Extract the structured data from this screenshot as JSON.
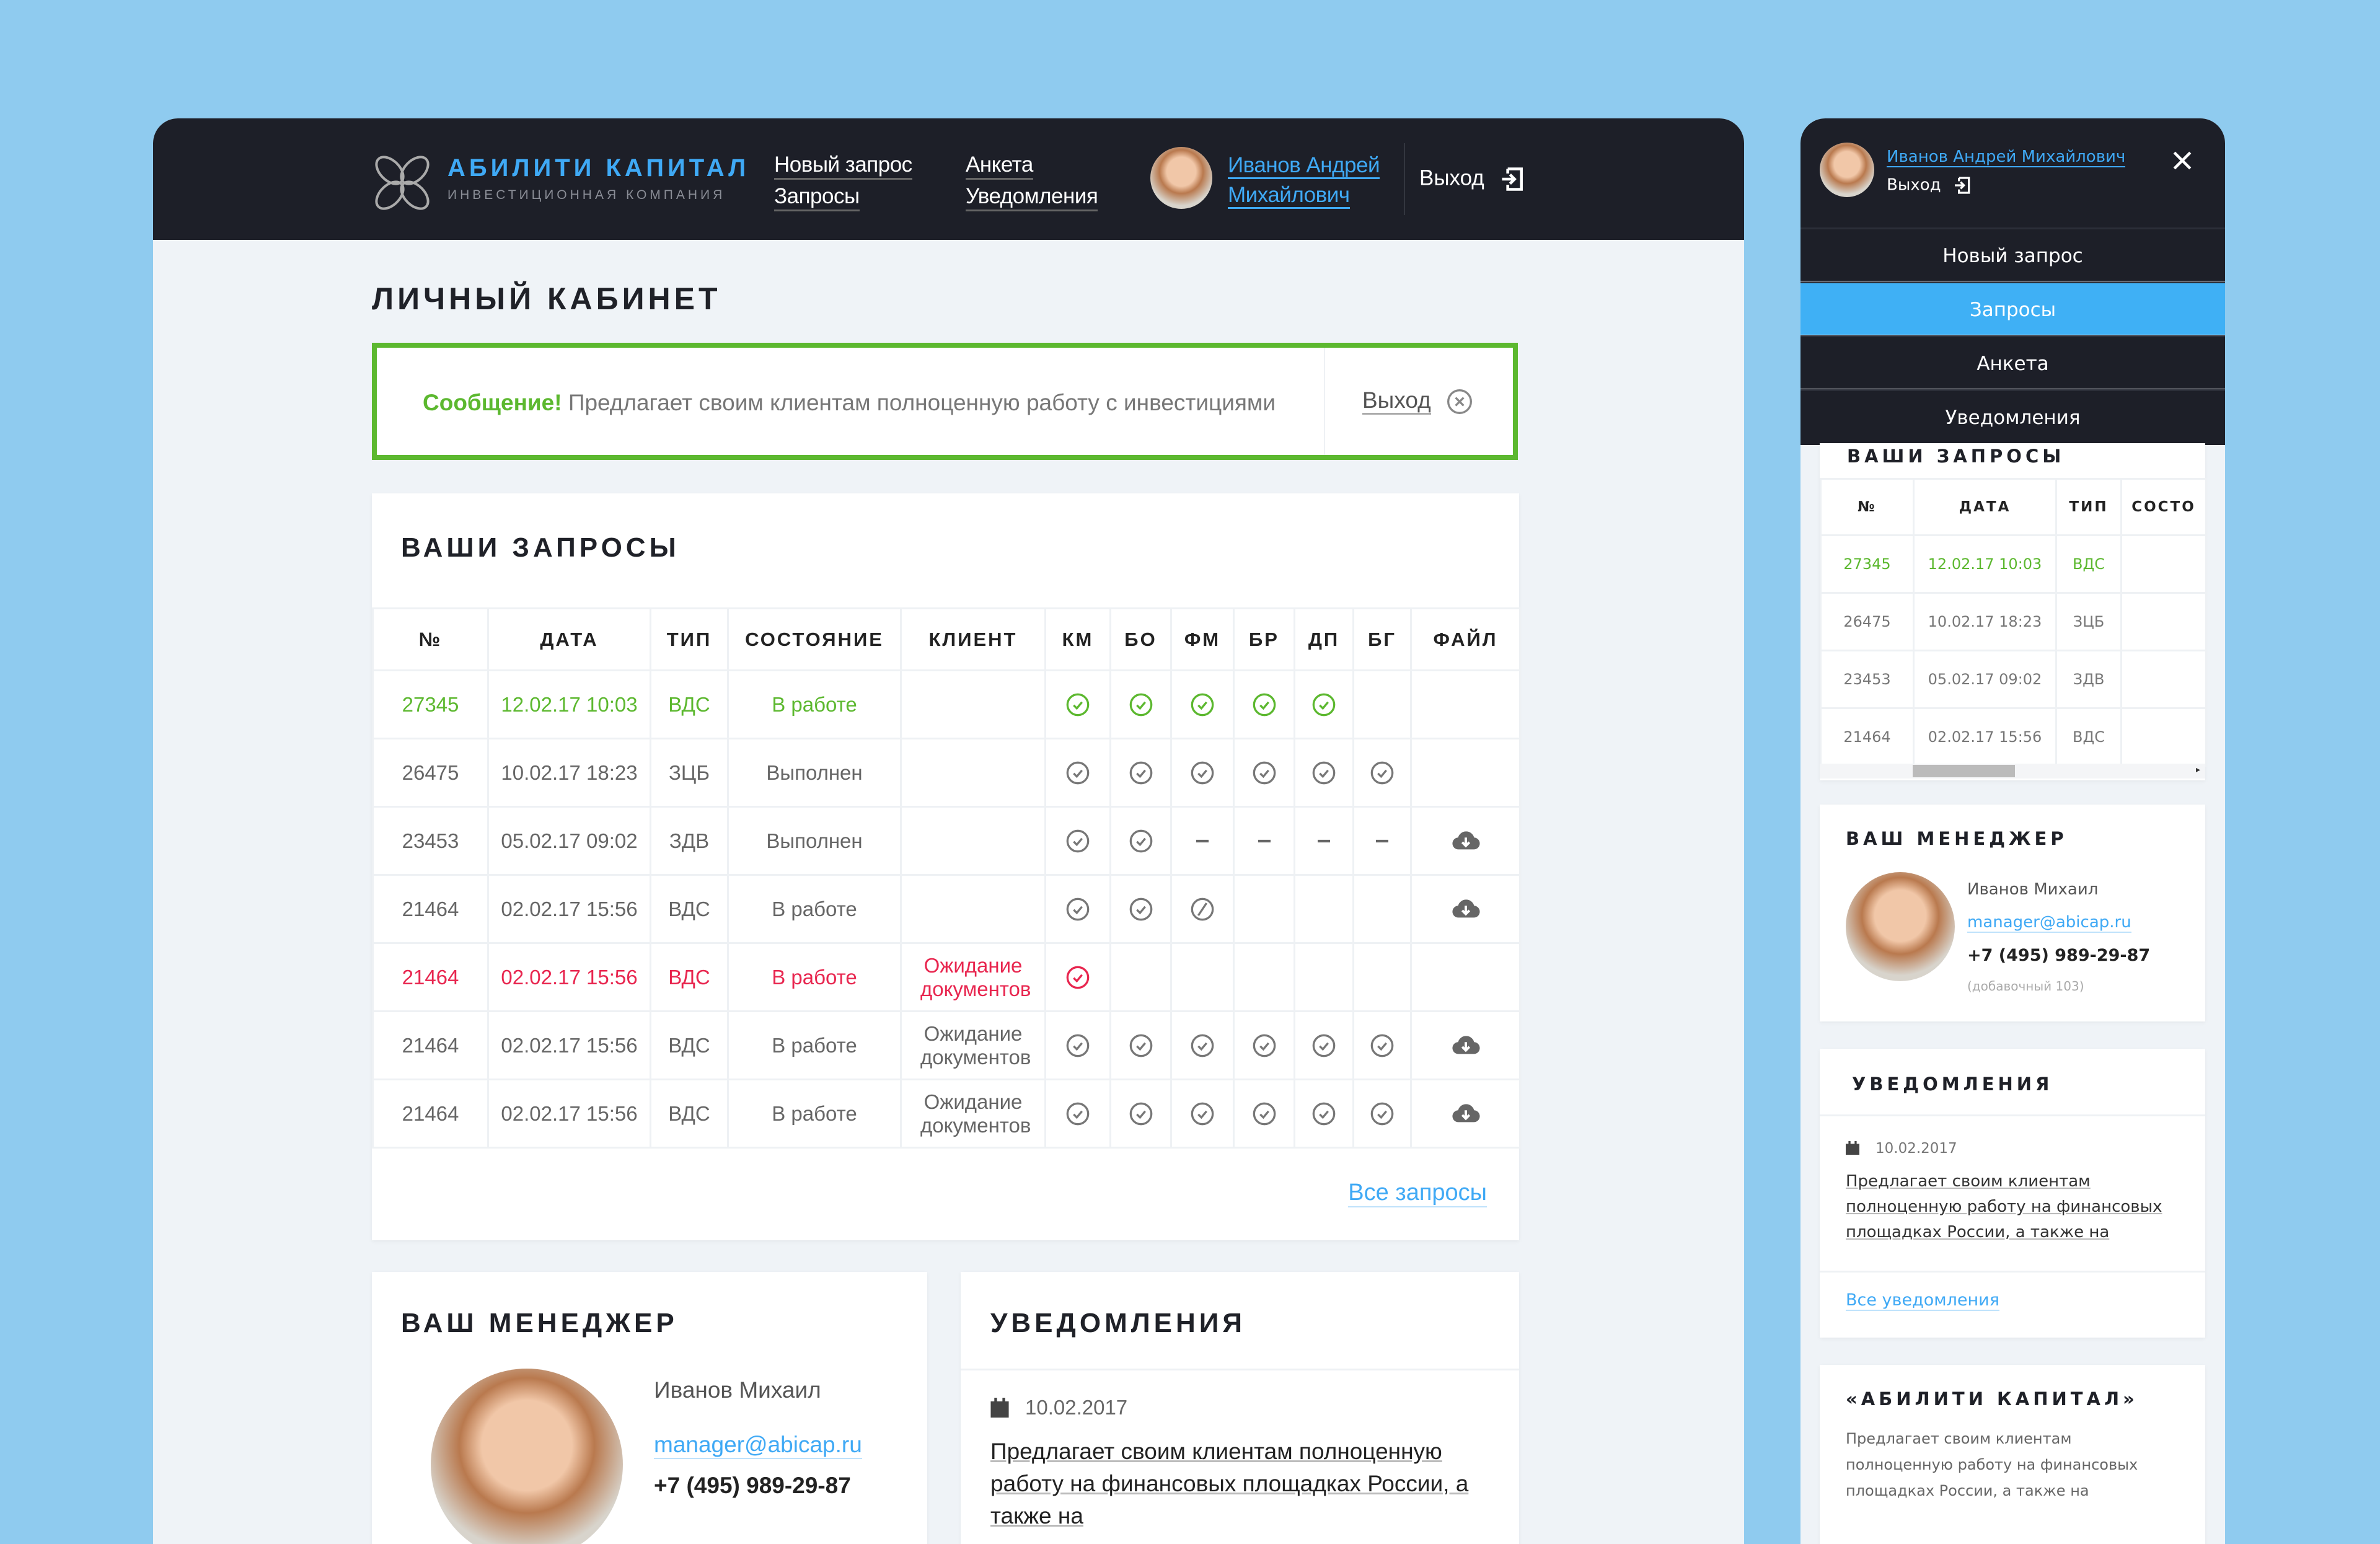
{
  "header": {
    "brand": "АБИЛИТИ КАПИТАЛ",
    "tagline": "ИНВЕСТИЦИОННАЯ КОМПАНИЯ",
    "nav": [
      "Новый запрос",
      "Запросы",
      "Анкета",
      "Уведомления"
    ],
    "user_line1": "Иванов Андрей",
    "user_line2": "Михайлович",
    "logout": "Выход"
  },
  "page_title": "ЛИЧНЫЙ КАБИНЕТ",
  "message": {
    "label": "Сообщение!",
    "text": "Предлагает своим клиентам полноценную работу с инвестициями",
    "exit": "Выход"
  },
  "requests": {
    "title": "ВАШИ ЗАПРОСЫ",
    "columns": [
      "№",
      "ДАТА",
      "ТИП",
      "СОСТОЯНИЕ",
      "КЛИЕНТ",
      "КМ",
      "БО",
      "ФМ",
      "БР",
      "ДП",
      "БГ",
      "ФАЙЛ"
    ],
    "rows": [
      {
        "num": "27345",
        "date": "12.02.17 10:03",
        "type": "ВДС",
        "status": "В работе",
        "client": "",
        "marks": [
          "check",
          "check",
          "check",
          "check",
          "check",
          ""
        ],
        "file": false,
        "tone": "green"
      },
      {
        "num": "26475",
        "date": "10.02.17 18:23",
        "type": "ЗЦБ",
        "status": "Выполнен",
        "client": "",
        "marks": [
          "check",
          "check",
          "check",
          "check",
          "check",
          "check"
        ],
        "file": false,
        "tone": "normal"
      },
      {
        "num": "23453",
        "date": "05.02.17 09:02",
        "type": "ЗДВ",
        "status": "Выполнен",
        "client": "",
        "marks": [
          "check",
          "check",
          "dash",
          "dash",
          "dash",
          "dash"
        ],
        "file": true,
        "tone": "normal"
      },
      {
        "num": "21464",
        "date": "02.02.17 15:56",
        "type": "ВДС",
        "status": "В работе",
        "client": "",
        "marks": [
          "check",
          "check",
          "blocked",
          "",
          "",
          ""
        ],
        "file": true,
        "tone": "normal"
      },
      {
        "num": "21464",
        "date": "02.02.17 15:56",
        "type": "ВДС",
        "status": "В работе",
        "client": "Ожидание документов",
        "marks": [
          "check",
          "",
          "",
          "",
          "",
          ""
        ],
        "file": false,
        "tone": "red"
      },
      {
        "num": "21464",
        "date": "02.02.17 15:56",
        "type": "ВДС",
        "status": "В работе",
        "client": "Ожидание документов",
        "marks": [
          "check",
          "check",
          "check",
          "check",
          "check",
          "check"
        ],
        "file": true,
        "tone": "normal"
      },
      {
        "num": "21464",
        "date": "02.02.17 15:56",
        "type": "ВДС",
        "status": "В работе",
        "client": "Ожидание документов",
        "marks": [
          "check",
          "check",
          "check",
          "check",
          "check",
          "check"
        ],
        "file": true,
        "tone": "normal"
      }
    ],
    "all_link": "Все запросы"
  },
  "manager": {
    "title": "ВАШ МЕНЕДЖЕР",
    "name": "Иванов Михаил",
    "email": "manager@abicap.ru",
    "phone": "+7 (495) 989-29-87",
    "ext": "(добавочный 103)"
  },
  "notifications": {
    "title": "УВЕДОМЛЕНИЯ",
    "date": "10.02.2017",
    "text": "Предлагает своим клиентам полноценную работу на финансовых площадках России, а также на",
    "all_link": "Все уведомления"
  },
  "mobile": {
    "user": "Иванов Андрей Михайлович",
    "logout": "Выход",
    "menu": [
      "Новый запрос",
      "Запросы",
      "Анкета",
      "Уведомления"
    ],
    "active": 1,
    "requests_columns": [
      "№",
      "ДАТА",
      "ТИП",
      "СОСТО"
    ],
    "about_title": "«АБИЛИТИ КАПИТАЛ»",
    "about_text": "Предлагает своим клиентам полноценную работу на финансовых площадках России, а также на"
  },
  "colors": {
    "accent": "#3fa9f5",
    "green": "#5cb82f",
    "red": "#e8264f",
    "dark": "#1d1f28"
  }
}
